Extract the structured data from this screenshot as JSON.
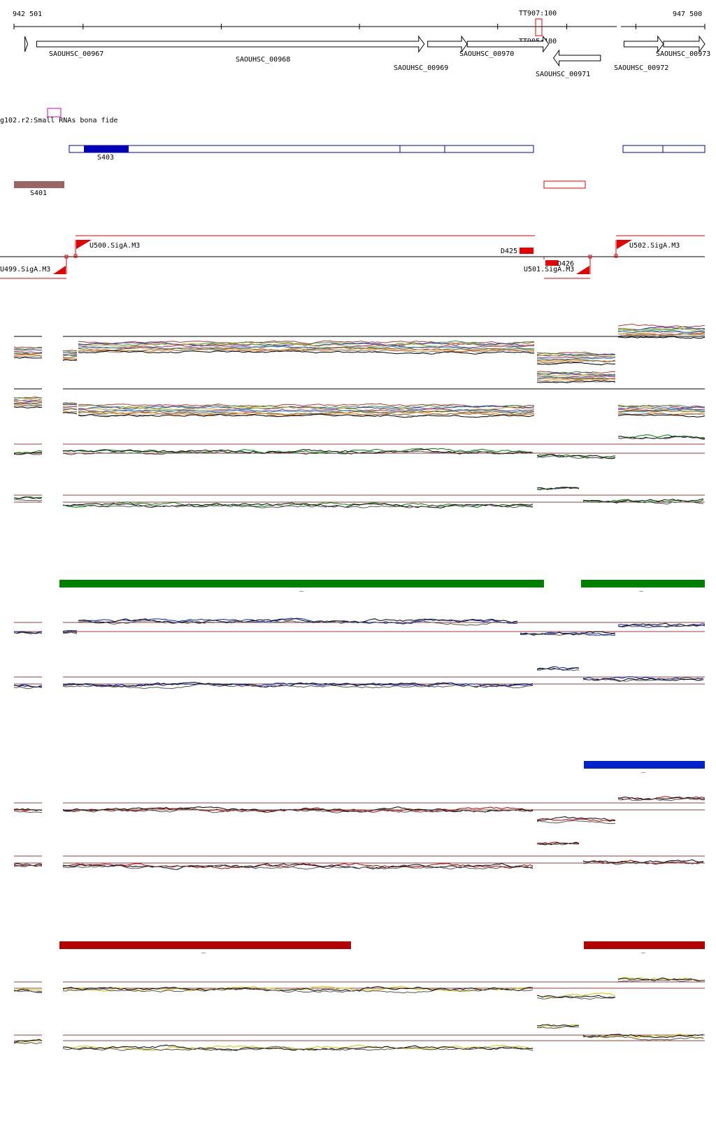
{
  "ruler": {
    "start_label": "942 501",
    "end_label": "947 500"
  },
  "terminators": {
    "tt907": "TT907:100",
    "tt905": "TT905:100"
  },
  "genes": [
    {
      "label": "SAOUHSC_00967",
      "strand": "+",
      "start": 942580,
      "end": 942600
    },
    {
      "label": "SAOUHSC_00968",
      "strand": "+",
      "start": 942665,
      "end": 945470
    },
    {
      "label": "SAOUHSC_00969",
      "strand": "+",
      "start": 945495,
      "end": 945780
    },
    {
      "label": "SAOUHSC_00970",
      "strand": "+",
      "start": 945781,
      "end": 946370
    },
    {
      "label": "SAOUHSC_00971",
      "strand": "-",
      "start": 946405,
      "end": 946745
    },
    {
      "label": "SAOUHSC_00972",
      "strand": "+",
      "start": 946915,
      "end": 947200
    },
    {
      "label": "SAOUHSC_00973",
      "strand": "+",
      "start": 947201,
      "end": 947500
    }
  ],
  "small_rna_track": {
    "label": "g102.r2:Small RNAs bona fide"
  },
  "srna": {
    "s403": "S403",
    "s401": "S401"
  },
  "promoters": {
    "u500": "U500.SigA.M3",
    "u499": "U499.SigA.M3",
    "u501": "U501.SigA.M3",
    "u502": "U502.SigA.M3",
    "d425": "D425",
    "d426": "D426"
  },
  "segment_marks": {
    "dash": "_"
  },
  "colors": {
    "gene_outline": "#000000",
    "srna_blue": "#0000b8",
    "srna_brown": "#9b6464",
    "promoter_red": "#e60000",
    "green": "#008000",
    "blue": "#0022cc",
    "red": "#b30000",
    "yellow": "#c8c800",
    "threshold": "#9b3c3c"
  }
}
